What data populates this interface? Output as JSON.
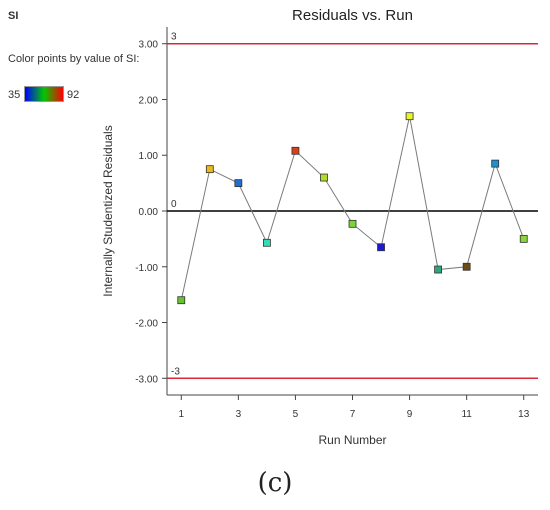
{
  "legend": {
    "title": "SI",
    "description": "Color points by value of SI:",
    "min_label": "35",
    "max_label": "92",
    "gradient_colors": [
      "#0000ff",
      "#00c800",
      "#ff0000"
    ]
  },
  "caption": "(c)",
  "chart_data": {
    "type": "scatter",
    "title": "Residuals vs. Run",
    "xlabel": "Run Number",
    "ylabel": "Internally Studentized Residuals",
    "xlim": [
      0.5,
      13.5
    ],
    "ylim": [
      -3.3,
      3.3
    ],
    "x_ticks": [
      1,
      3,
      5,
      7,
      9,
      11,
      13
    ],
    "y_ticks": [
      "3.00",
      "2.00",
      "1.00",
      "0.00",
      "-1.00",
      "-2.00",
      "-3.00"
    ],
    "reference_lines": [
      {
        "value": 3,
        "label": "3",
        "color": "#d9263a"
      },
      {
        "value": 0,
        "label": "0",
        "color": "#000000"
      },
      {
        "value": -3,
        "label": "-3",
        "color": "#d9263a"
      }
    ],
    "connect_points": true,
    "series": [
      {
        "x": [
          1,
          2,
          3,
          4,
          5,
          6,
          7,
          8,
          9,
          10,
          11,
          12,
          13
        ],
        "y": [
          -1.6,
          0.75,
          0.5,
          -0.57,
          1.08,
          0.6,
          -0.23,
          -0.65,
          1.7,
          -1.05,
          -1.0,
          0.85,
          -0.5
        ],
        "colors": [
          "#66c22e",
          "#e8b820",
          "#1f6fd1",
          "#2fe0b6",
          "#d9401a",
          "#b0dc2a",
          "#7ad630",
          "#1a1ad6",
          "#e4f52a",
          "#2aa87a",
          "#6e4a14",
          "#1f8fd1",
          "#88d63a"
        ]
      }
    ]
  }
}
